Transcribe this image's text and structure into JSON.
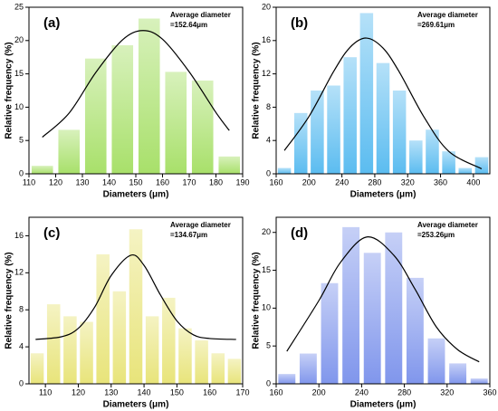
{
  "chart_data": [
    {
      "type": "histogram",
      "title": "(a)",
      "annotations": [
        "Average diameter",
        "=152.64μm"
      ],
      "xlabel": "Diameters (μm)",
      "ylabel": "Relative frequency (%)",
      "bins": [
        110,
        120,
        130,
        140,
        150,
        160,
        170,
        180,
        190
      ],
      "values": [
        1.2,
        6.6,
        17.3,
        19.3,
        23.3,
        15.3,
        14,
        2.6
      ],
      "color": "#a8e06a",
      "fit": {
        "x": [
          115,
          125,
          135,
          145,
          152.64,
          160,
          170,
          180,
          185
        ],
        "values": [
          5.5,
          9.1,
          15.2,
          20.1,
          21.5,
          20.2,
          15.3,
          9.2,
          6.5
        ],
        "color": "#000000"
      },
      "xlim": [
        110,
        190
      ],
      "xticks": [
        110,
        120,
        130,
        140,
        150,
        160,
        170,
        180,
        190
      ],
      "ylim": [
        0,
        25
      ],
      "yticks": [
        0,
        5,
        10,
        15,
        20,
        25
      ]
    },
    {
      "type": "histogram",
      "title": "(b)",
      "annotations": [
        "Average diameter",
        "=269.61μm"
      ],
      "xlabel": "Diameters (μm)",
      "ylabel": "Relative frequency (%)",
      "bins": [
        160,
        180,
        200,
        220,
        240,
        260,
        280,
        300,
        320,
        340,
        360,
        380,
        400,
        420
      ],
      "values": [
        0.7,
        7.3,
        10,
        10.6,
        14,
        19.3,
        13.3,
        10,
        4,
        5.3,
        2.7,
        0.7,
        2
      ],
      "color": "#5bbcf0",
      "fit": {
        "x": [
          170,
          200,
          230,
          250,
          269.61,
          290,
          310,
          340,
          370,
          410
        ],
        "values": [
          2.8,
          6.9,
          12.3,
          15.2,
          16.3,
          15.1,
          12.2,
          6.8,
          2.7,
          0.6
        ],
        "color": "#000000"
      },
      "xlim": [
        160,
        420
      ],
      "xticks": [
        160,
        200,
        240,
        280,
        320,
        360,
        400
      ],
      "ylim": [
        0,
        20
      ],
      "yticks": [
        0,
        4,
        8,
        12,
        16,
        20
      ]
    },
    {
      "type": "histogram",
      "title": "(c)",
      "annotations": [
        "Average diameter",
        "=134.67μm"
      ],
      "xlabel": "Diameters (μm)",
      "ylabel": "Relative frequency (%)",
      "bins": [
        105,
        110,
        115,
        120,
        125,
        130,
        135,
        140,
        145,
        150,
        155,
        160,
        165,
        170
      ],
      "values": [
        3.3,
        8.6,
        7.3,
        6.7,
        14,
        10,
        16.7,
        7.3,
        9.3,
        6,
        4.7,
        3.3,
        2.7
      ],
      "color": "#e8e47a",
      "fit": {
        "x": [
          107,
          115,
          120,
          125,
          130,
          136,
          140,
          145,
          150,
          155,
          160,
          168
        ],
        "values": [
          4.8,
          5.1,
          6.0,
          8.3,
          11.7,
          13.9,
          12.8,
          9.6,
          6.8,
          5.3,
          4.9,
          4.8
        ],
        "color": "#000000"
      },
      "xlim": [
        105,
        170
      ],
      "xticks": [
        110,
        120,
        130,
        140,
        150,
        160,
        170
      ],
      "ylim": [
        0,
        18
      ],
      "yticks": [
        0,
        4,
        8,
        12,
        16
      ]
    },
    {
      "type": "histogram",
      "title": "(d)",
      "annotations": [
        "Average diameter",
        "=253.26μm"
      ],
      "xlabel": "Diameters (μm)",
      "ylabel": "Relative frequency (%)",
      "bins": [
        160,
        180,
        200,
        220,
        240,
        260,
        280,
        300,
        320,
        340,
        360
      ],
      "values": [
        1.3,
        4,
        13.3,
        20.7,
        17.3,
        20,
        14,
        6,
        2.7,
        0.7
      ],
      "color": "#8096ec",
      "fit": {
        "x": [
          170,
          200,
          220,
          245,
          270,
          290,
          310,
          330,
          350
        ],
        "values": [
          4.3,
          11,
          16,
          19.4,
          17,
          12.5,
          7.5,
          4.5,
          2.9
        ],
        "color": "#000000"
      },
      "xlim": [
        160,
        360
      ],
      "xticks": [
        160,
        200,
        240,
        280,
        320,
        360
      ],
      "ylim": [
        0,
        22
      ],
      "yticks": [
        0,
        5,
        10,
        15,
        20
      ]
    }
  ]
}
